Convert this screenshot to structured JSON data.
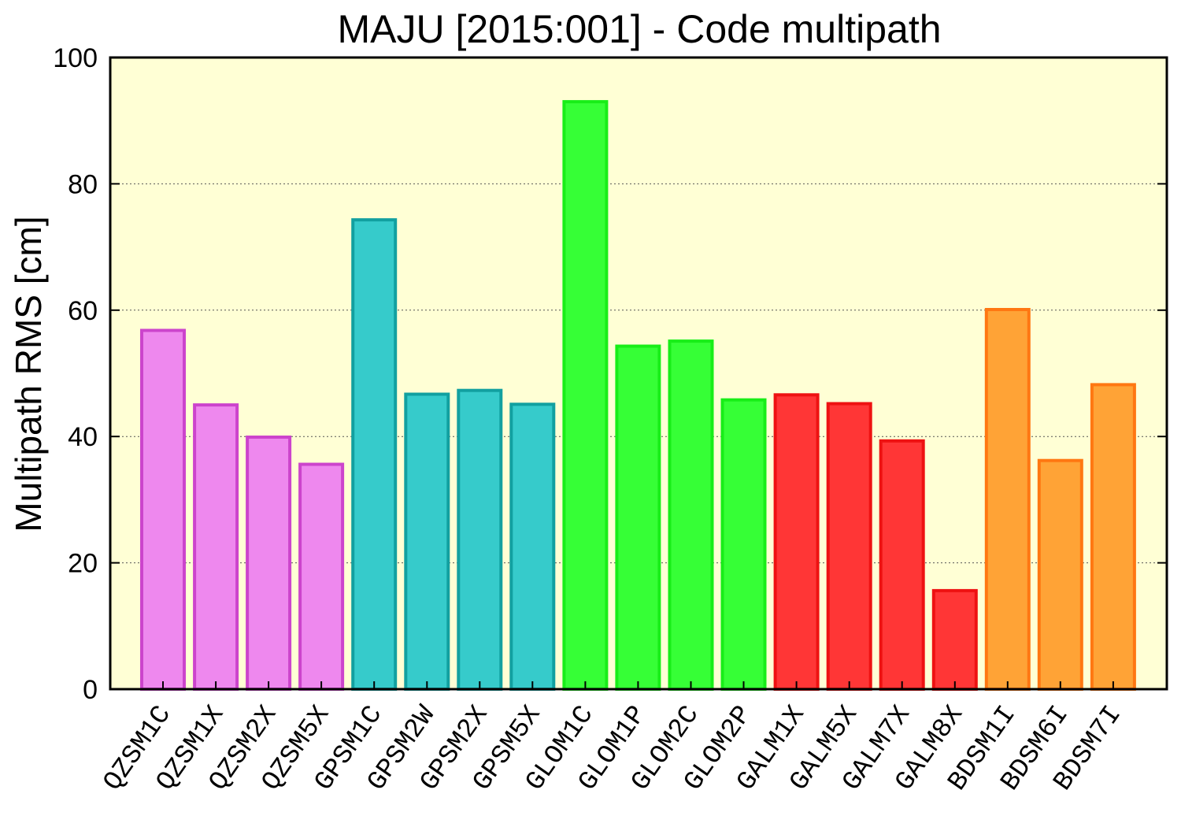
{
  "chart_data": {
    "type": "bar",
    "title": "MAJU [2015:001] - Code multipath",
    "xlabel": "",
    "ylabel": "Multipath RMS [cm]",
    "ylim": [
      0,
      100
    ],
    "yticks": [
      0,
      20,
      40,
      60,
      80,
      100
    ],
    "grid": true,
    "background_color": "#ffffd5",
    "categories": [
      "QZSM1C",
      "QZSM1X",
      "QZSM2X",
      "QZSM5X",
      "GPSM1C",
      "GPSM2W",
      "GPSM2X",
      "GPSM5X",
      "GLOM1C",
      "GLOM1P",
      "GLOM2C",
      "GLOM2P",
      "GALM1X",
      "GALM5X",
      "GALM7X",
      "GALM8X",
      "BDSM1I",
      "BDSM6I",
      "BDSM7I"
    ],
    "values": [
      56.8,
      45.0,
      39.9,
      35.6,
      74.3,
      46.7,
      47.3,
      45.1,
      93.0,
      54.3,
      55.1,
      45.8,
      46.6,
      45.2,
      39.3,
      15.6,
      60.1,
      36.2,
      48.2
    ],
    "groups": [
      {
        "system": "QZS",
        "count": 4,
        "fill": "#ee88ee",
        "stroke": "#cc44cc"
      },
      {
        "system": "GPS",
        "count": 4,
        "fill": "#36cbcb",
        "stroke": "#12a0a0"
      },
      {
        "system": "GLO",
        "count": 4,
        "fill": "#36ff36",
        "stroke": "#18ee18"
      },
      {
        "system": "GAL",
        "count": 4,
        "fill": "#ff3636",
        "stroke": "#ee1212"
      },
      {
        "system": "BDS",
        "count": 3,
        "fill": "#ffa336",
        "stroke": "#ff7712"
      }
    ]
  }
}
